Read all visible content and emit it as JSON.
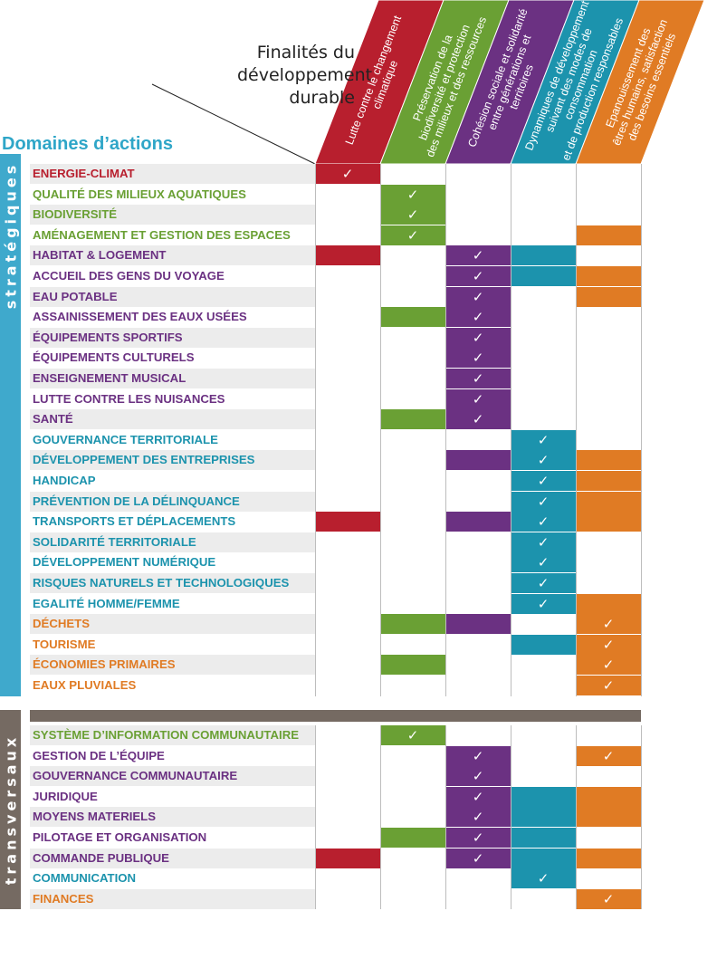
{
  "header": {
    "finalites_title": "Finalités du\ndéveloppement\ndurable",
    "domaines_title": "Domaines d’actions",
    "domaines_color": "#2fa6c8"
  },
  "columns": [
    {
      "label": "Lutte contre le changement\nclimatique",
      "color": "#b81f2e"
    },
    {
      "label": "Préservation de la\nbiodiversité et protection\ndes milieux et des ressources",
      "color": "#6aa034"
    },
    {
      "label": "Cohésion sociale et solidarité\nentre générations et\nterritoires",
      "color": "#6b3182"
    },
    {
      "label": "Dynamiques de développement\nsuivant des modes de consommation\net de production responsables",
      "color": "#1c93ad"
    },
    {
      "label": "Epanouissement des\nêtres humains, satisfaction\ndes besoins essentiels",
      "color": "#e07b24"
    }
  ],
  "sections": [
    {
      "label": "stratégiques",
      "color": "#3fa9cc"
    },
    {
      "label": "transversaux",
      "color": "#756a62"
    }
  ],
  "row_colors": {
    "red": "#b81f2e",
    "green": "#6aa034",
    "purple": "#6b3182",
    "teal": "#1c93ad",
    "orange": "#e07b24"
  },
  "strategic_rows": [
    {
      "label": "ENERGIE-CLIMAT",
      "color": "red",
      "cells": [
        2,
        0,
        0,
        0,
        0
      ]
    },
    {
      "label": "QUALITÉ DES MILIEUX AQUATIQUES",
      "color": "green",
      "cells": [
        0,
        2,
        0,
        0,
        0
      ]
    },
    {
      "label": "BIODIVERSITÉ",
      "color": "green",
      "cells": [
        0,
        2,
        0,
        0,
        0
      ]
    },
    {
      "label": "AMÉNAGEMENT ET GESTION DES ESPACES",
      "color": "green",
      "cells": [
        0,
        2,
        0,
        0,
        1
      ]
    },
    {
      "label": "HABITAT & LOGEMENT",
      "color": "purple",
      "cells": [
        1,
        0,
        2,
        1,
        0
      ]
    },
    {
      "label": "ACCUEIL DES GENS DU VOYAGE",
      "color": "purple",
      "cells": [
        0,
        0,
        2,
        1,
        1
      ]
    },
    {
      "label": "EAU POTABLE",
      "color": "purple",
      "cells": [
        0,
        0,
        2,
        0,
        1
      ]
    },
    {
      "label": "ASSAINISSEMENT DES EAUX USÉES",
      "color": "purple",
      "cells": [
        0,
        1,
        2,
        0,
        0
      ]
    },
    {
      "label": "ÉQUIPEMENTS SPORTIFS",
      "color": "purple",
      "cells": [
        0,
        0,
        2,
        0,
        0
      ]
    },
    {
      "label": "ÉQUIPEMENTS CULTURELS",
      "color": "purple",
      "cells": [
        0,
        0,
        2,
        0,
        0
      ]
    },
    {
      "label": "ENSEIGNEMENT MUSICAL",
      "color": "purple",
      "cells": [
        0,
        0,
        2,
        0,
        0
      ]
    },
    {
      "label": "LUTTE CONTRE LES NUISANCES",
      "color": "purple",
      "cells": [
        0,
        0,
        2,
        0,
        0
      ]
    },
    {
      "label": "SANTÉ",
      "color": "purple",
      "cells": [
        0,
        1,
        2,
        0,
        0
      ]
    },
    {
      "label": "GOUVERNANCE TERRITORIALE",
      "color": "teal",
      "cells": [
        0,
        0,
        0,
        2,
        0
      ]
    },
    {
      "label": "DÉVELOPPEMENT DES ENTREPRISES",
      "color": "teal",
      "cells": [
        0,
        0,
        1,
        2,
        1
      ]
    },
    {
      "label": "HANDICAP",
      "color": "teal",
      "cells": [
        0,
        0,
        0,
        2,
        1
      ]
    },
    {
      "label": "PRÉVENTION DE LA DÉLINQUANCE",
      "color": "teal",
      "cells": [
        0,
        0,
        0,
        2,
        1
      ]
    },
    {
      "label": "TRANSPORTS ET DÉPLACEMENTS",
      "color": "teal",
      "cells": [
        1,
        0,
        1,
        2,
        1
      ]
    },
    {
      "label": "SOLIDARITÉ TERRITORIALE",
      "color": "teal",
      "cells": [
        0,
        0,
        0,
        2,
        0
      ]
    },
    {
      "label": "DÉVELOPPEMENT NUMÉRIQUE",
      "color": "teal",
      "cells": [
        0,
        0,
        0,
        2,
        0
      ]
    },
    {
      "label": "RISQUES NATURELS ET TECHNOLOGIQUES",
      "color": "teal",
      "cells": [
        0,
        0,
        0,
        2,
        0
      ]
    },
    {
      "label": "EGALITÉ HOMME/FEMME",
      "color": "teal",
      "cells": [
        0,
        0,
        0,
        2,
        1
      ]
    },
    {
      "label": "DÉCHETS",
      "color": "orange",
      "cells": [
        0,
        1,
        1,
        0,
        2
      ]
    },
    {
      "label": "TOURISME",
      "color": "orange",
      "cells": [
        0,
        0,
        0,
        1,
        2
      ]
    },
    {
      "label": "ÉCONOMIES PRIMAIRES",
      "color": "orange",
      "cells": [
        0,
        1,
        0,
        0,
        2
      ]
    },
    {
      "label": "EAUX PLUVIALES",
      "color": "orange",
      "cells": [
        0,
        0,
        0,
        0,
        2
      ]
    }
  ],
  "transversal_rows": [
    {
      "label": "SYSTÈME D’INFORMATION COMMUNAUTAIRE",
      "color": "green",
      "cells": [
        0,
        2,
        0,
        0,
        0
      ]
    },
    {
      "label": "GESTION DE L’ÉQUIPE",
      "color": "purple",
      "cells": [
        0,
        0,
        2,
        0,
        2
      ]
    },
    {
      "label": "GOUVERNANCE COMMUNAUTAIRE",
      "color": "purple",
      "cells": [
        0,
        0,
        2,
        0,
        0
      ]
    },
    {
      "label": "JURIDIQUE",
      "color": "purple",
      "cells": [
        0,
        0,
        2,
        1,
        1
      ]
    },
    {
      "label": "MOYENS MATERIELS",
      "color": "purple",
      "cells": [
        0,
        0,
        2,
        1,
        1
      ]
    },
    {
      "label": "PILOTAGE ET ORGANISATION",
      "color": "purple",
      "cells": [
        0,
        1,
        2,
        1,
        0
      ]
    },
    {
      "label": "COMMANDE PUBLIQUE",
      "color": "purple",
      "cells": [
        1,
        0,
        2,
        1,
        1
      ]
    },
    {
      "label": "COMMUNICATION",
      "color": "teal",
      "cells": [
        0,
        0,
        0,
        2,
        0
      ]
    },
    {
      "label": "FINANCES",
      "color": "orange",
      "cells": [
        0,
        0,
        0,
        0,
        2
      ]
    }
  ],
  "check_glyph": "✓"
}
